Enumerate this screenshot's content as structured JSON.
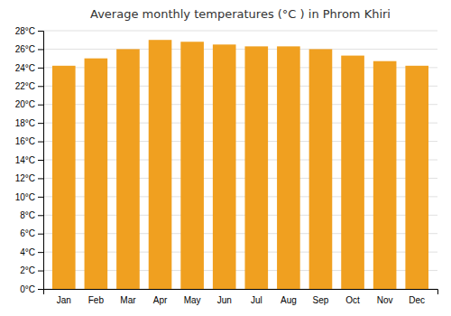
{
  "chart_data": {
    "type": "bar",
    "title": "Average monthly temperatures (°C ) in Phrom Khiri",
    "categories": [
      "Jan",
      "Feb",
      "Mar",
      "Apr",
      "May",
      "Jun",
      "Jul",
      "Aug",
      "Sep",
      "Oct",
      "Nov",
      "Dec"
    ],
    "values": [
      24.2,
      25.0,
      26.0,
      27.0,
      26.8,
      26.5,
      26.3,
      26.3,
      26.0,
      25.3,
      24.7,
      24.2
    ],
    "color": "#F0A020",
    "ylim": [
      0,
      28
    ],
    "yticks": [
      {
        "value": 0,
        "label": "0°C"
      },
      {
        "value": 2,
        "label": "2°C"
      },
      {
        "value": 4,
        "label": "4°C"
      },
      {
        "value": 6,
        "label": "6°C"
      },
      {
        "value": 8,
        "label": "8°C"
      },
      {
        "value": 10,
        "label": "10°C"
      },
      {
        "value": 12,
        "label": "12°C"
      },
      {
        "value": 14,
        "label": "14°C"
      },
      {
        "value": 16,
        "label": "16°C"
      },
      {
        "value": 18,
        "label": "18°C"
      },
      {
        "value": 20,
        "label": "20°C"
      },
      {
        "value": 22,
        "label": "22°C"
      },
      {
        "value": 24,
        "label": "24°C"
      },
      {
        "value": 26,
        "label": "26°C"
      },
      {
        "value": 28,
        "label": "28°C"
      }
    ],
    "grid": true
  }
}
